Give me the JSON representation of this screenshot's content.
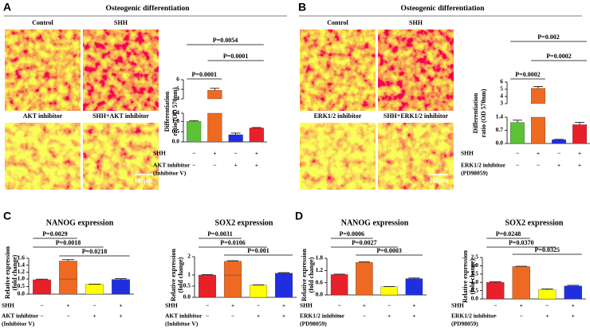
{
  "panels": [
    {
      "letter": "A",
      "title": "Osteogenic differentiation",
      "images": [
        "Control",
        "SHH",
        "AKT inhibitor",
        "SHH+AKT inhibitor"
      ],
      "scale_bar": "100μm"
    },
    {
      "letter": "B",
      "title": "Osteogenic differentiation",
      "images": [
        "Control",
        "SHH",
        "ERK1/2 inhibitor",
        "SHH+ERK1/2 inhibitor"
      ],
      "scale_bar": "100μm"
    },
    {
      "letter": "C"
    },
    {
      "letter": "D"
    }
  ],
  "chart_data": [
    {
      "type": "bar",
      "ylabel": [
        "Differentiation",
        "ratio (OD 570nm)"
      ],
      "values": [
        1.0,
        4.9,
        0.35,
        0.68
      ],
      "errors": [
        0.04,
        0.2,
        0.08,
        0.02
      ],
      "colors": [
        "#5bc236",
        "#ee6a22",
        "#1f2fe0",
        "#e8202a"
      ],
      "segments": [
        {
          "ylim": [
            0,
            1.4
          ],
          "yticks": [
            {
              "value": 0,
              "label": "0.0"
            },
            0.5,
            {
              "value": 1,
              "label": "1.0"
            },
            1.4
          ]
        },
        {
          "ylim": [
            4,
            6
          ],
          "yticks": [
            4,
            5,
            6
          ]
        }
      ],
      "brackets": [
        {
          "label": "P=0.0054",
          "bars": [
            0,
            3
          ]
        },
        {
          "label": "P=0.0001",
          "bars": [
            1,
            3
          ]
        },
        {
          "label": "P=0.0001",
          "bars": [
            0,
            1
          ]
        }
      ],
      "conditions": [
        {
          "label": [
            "SHH"
          ],
          "signs": [
            "−",
            "+",
            "−",
            "+"
          ]
        },
        {
          "label": [
            "AKT inhibitor",
            "(Inhibitor V)"
          ],
          "signs": [
            "−",
            "−",
            "+",
            "+"
          ]
        }
      ]
    },
    {
      "type": "bar",
      "ylabel": [
        "Differentiation",
        "ratio (OD 570nm)"
      ],
      "values": [
        1.12,
        5.15,
        0.2,
        1.0
      ],
      "errors": [
        0.12,
        0.25,
        0.02,
        0.12
      ],
      "colors": [
        "#5bc236",
        "#ee6a22",
        "#1f2fe0",
        "#e8202a"
      ],
      "segments": [
        {
          "ylim": [
            0,
            1.4
          ],
          "yticks": [
            {
              "value": 0,
              "label": "0.0"
            },
            0.7,
            1.4
          ]
        },
        {
          "ylim": [
            3,
            6
          ],
          "yticks": [
            3,
            4,
            5,
            6
          ]
        }
      ],
      "brackets": [
        {
          "label": "P=0.002",
          "bars": [
            0,
            3
          ]
        },
        {
          "label": "P=0.0002",
          "bars": [
            1,
            3
          ]
        },
        {
          "label": "P=0.0002",
          "bars": [
            0,
            1
          ]
        }
      ],
      "conditions": [
        {
          "label": [
            "SHH"
          ],
          "signs": [
            "−",
            "+",
            "−",
            "+"
          ]
        },
        {
          "label": [
            "ERK1/2 inhibitor",
            "(PD98059)"
          ],
          "signs": [
            "−",
            "−",
            "+",
            "+"
          ]
        }
      ]
    },
    {
      "type": "bar",
      "title": "NANOG expression",
      "ylabel": [
        "Relative expression",
        "(fold change)"
      ],
      "values": [
        0.95,
        1.52,
        0.65,
        0.97
      ],
      "errors": [
        0.04,
        0.04,
        0.01,
        0.05
      ],
      "colors": [
        "#e8202a",
        "#ee6a22",
        "#ffff00",
        "#1f2fe0"
      ],
      "segments": [
        {
          "ylim": [
            0,
            1
          ],
          "yticks": [
            {
              "value": 0,
              "label": "0.0"
            },
            0.5,
            {
              "value": 1,
              "label": "1.0"
            }
          ]
        },
        {
          "ylim": [
            1,
            1.6
          ],
          "yticks": [
            1.2,
            1.4,
            1.6
          ]
        }
      ],
      "brackets": [
        {
          "label": "P=0.0029",
          "bars": [
            0,
            1
          ]
        },
        {
          "label": "P=0.0018",
          "bars": [
            0,
            2
          ]
        },
        {
          "label": "P=0.0218",
          "bars": [
            1,
            3
          ]
        }
      ],
      "conditions": [
        {
          "label": [
            "SHH"
          ],
          "signs": [
            "−",
            "+",
            "−",
            "+"
          ]
        },
        {
          "label": [
            "AKT inhibitor",
            "(Inhibitor V)"
          ],
          "signs": [
            "−",
            "−",
            "+",
            "+"
          ]
        }
      ]
    },
    {
      "type": "bar",
      "title": "SOX2 expression",
      "ylabel": [
        "Relative expression",
        "(fold change)"
      ],
      "values": [
        1.0,
        1.75,
        0.55,
        1.1
      ],
      "errors": [
        0.02,
        0.03,
        0.01,
        0.03
      ],
      "colors": [
        "#e8202a",
        "#ee6a22",
        "#ffff00",
        "#1f2fe0"
      ],
      "segments": [
        {
          "ylim": [
            0,
            1
          ],
          "yticks": [
            {
              "value": 0,
              "label": "0.0"
            },
            0.5,
            1
          ]
        },
        {
          "ylim": [
            1,
            2
          ],
          "yticks": [
            2
          ]
        }
      ],
      "brackets": [
        {
          "label": "P=0.0031",
          "bars": [
            0,
            1
          ]
        },
        {
          "label": "P=0.0106",
          "bars": [
            0,
            2
          ]
        },
        {
          "label": "P=0.001",
          "bars": [
            1,
            3
          ]
        }
      ],
      "conditions": [
        {
          "label": [
            "SHH"
          ],
          "signs": [
            "−",
            "+",
            "−",
            "+"
          ]
        },
        {
          "label": [
            "AKT inhibitor",
            "(Inhibitor V)"
          ],
          "signs": [
            "−",
            "−",
            "+",
            "+"
          ]
        }
      ]
    },
    {
      "type": "bar",
      "title": "NANOG expression",
      "ylabel": [
        "Relative expression",
        "(fold change)"
      ],
      "values": [
        1.0,
        1.6,
        0.4,
        0.8
      ],
      "errors": [
        0.02,
        0.02,
        0.01,
        0.03
      ],
      "colors": [
        "#e8202a",
        "#ee6a22",
        "#ffff00",
        "#1f2fe0"
      ],
      "segments": [
        {
          "ylim": [
            0,
            1.8
          ],
          "yticks": [
            {
              "value": 0,
              "label": "0.0"
            },
            0.6,
            1.2,
            1.8
          ]
        }
      ],
      "brackets": [
        {
          "label": "P=0.0006",
          "bars": [
            0,
            1
          ]
        },
        {
          "label": "P=0.0027",
          "bars": [
            0,
            2
          ]
        },
        {
          "label": "P=0.0003",
          "bars": [
            1,
            3
          ]
        }
      ],
      "conditions": [
        {
          "label": [
            "SHH"
          ],
          "signs": [
            "−",
            "+",
            "−",
            "+"
          ]
        },
        {
          "label": [
            "ERK1/2 inhibitor",
            "(PD98059)"
          ],
          "signs": [
            "−",
            "−",
            "+",
            "+"
          ]
        }
      ]
    },
    {
      "type": "bar",
      "title": "SOX2 expression",
      "ylabel": [
        "Relative expression",
        "(fold change)"
      ],
      "values": [
        1.0,
        1.95,
        0.55,
        0.78
      ],
      "errors": [
        0.03,
        0.02,
        0.05,
        0.04
      ],
      "colors": [
        "#e8202a",
        "#ee6a22",
        "#ffff00",
        "#1f2fe0"
      ],
      "segments": [
        {
          "ylim": [
            0,
            2.5
          ],
          "yticks": [
            {
              "value": 0,
              "label": "0.0"
            },
            0.5,
            {
              "value": 1,
              "label": "1.0"
            },
            1.5,
            {
              "value": 2,
              "label": "2.0"
            },
            2.5
          ]
        }
      ],
      "brackets": [
        {
          "label": "P=0.0248",
          "bars": [
            0,
            1
          ]
        },
        {
          "label": "P=0.0370",
          "bars": [
            0,
            2
          ]
        },
        {
          "label": "P=0.0325",
          "bars": [
            1,
            3
          ]
        }
      ],
      "conditions": [
        {
          "label": [
            "SHH"
          ],
          "signs": [
            "−",
            "+",
            "−",
            "+"
          ]
        },
        {
          "label": [
            "ERK1/2 inhibitor",
            "(PD98059)"
          ],
          "signs": [
            "−",
            "−",
            "+",
            "+"
          ]
        }
      ]
    }
  ]
}
